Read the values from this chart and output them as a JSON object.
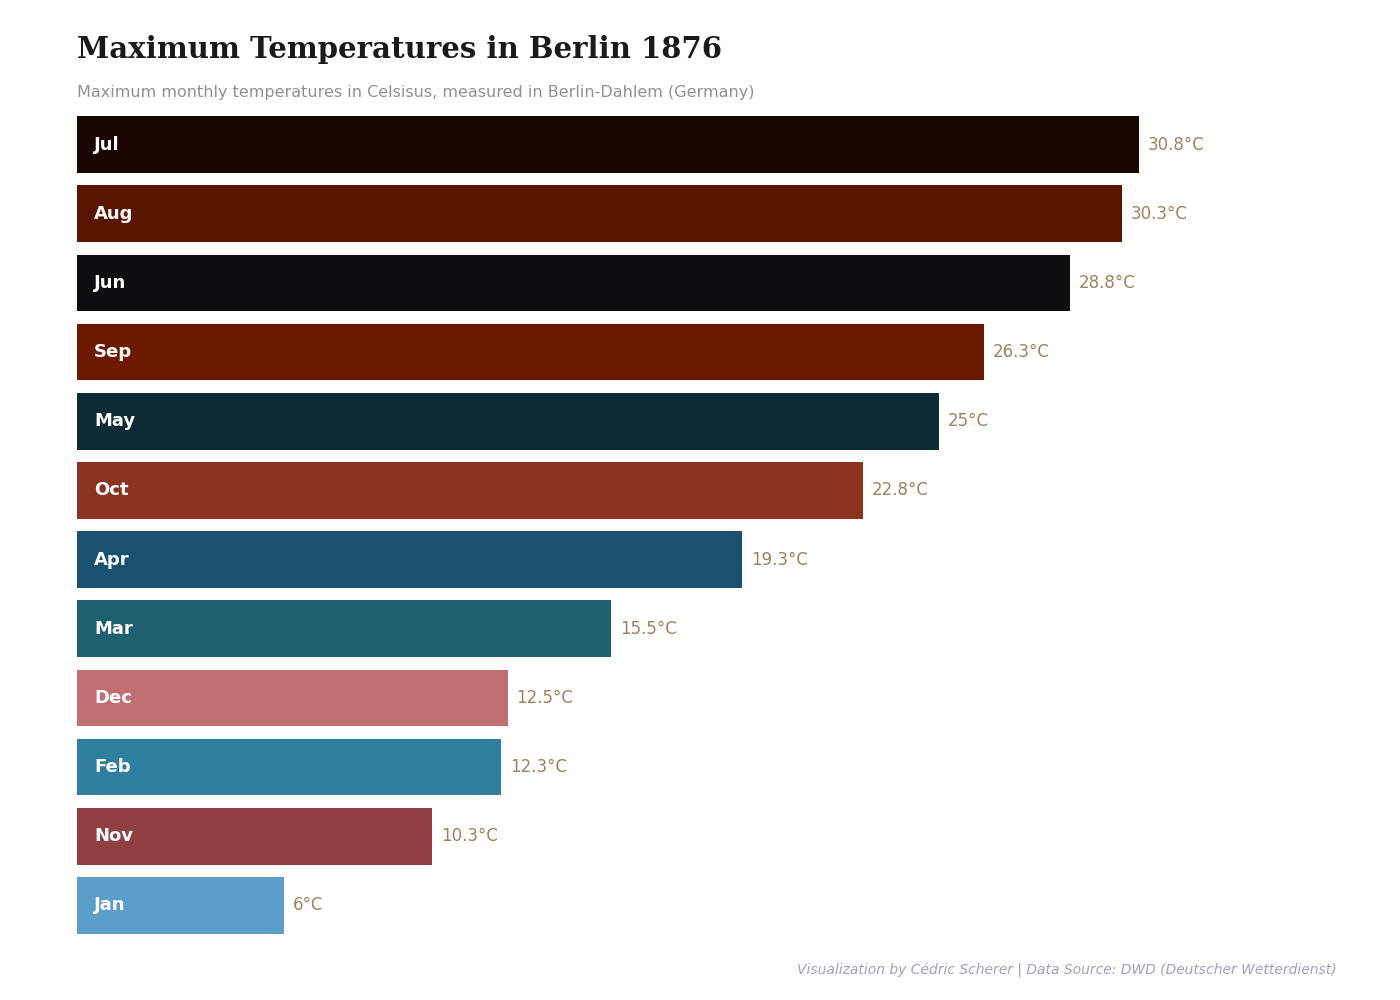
{
  "title": "Maximum Temperatures in Berlin 1876",
  "subtitle": "Maximum monthly temperatures in Celsisus, measured in Berlin-Dahlem (Germany)",
  "caption": "Visualization by Cédric Scherer | Data Source: DWD (Deutscher Wetterdienst)",
  "months": [
    "Jul",
    "Aug",
    "Jun",
    "Sep",
    "May",
    "Oct",
    "Apr",
    "Mar",
    "Dec",
    "Feb",
    "Nov",
    "Jan"
  ],
  "values": [
    30.8,
    30.3,
    28.8,
    26.3,
    25.0,
    22.8,
    19.3,
    15.5,
    12.5,
    12.3,
    10.3,
    6.0
  ],
  "labels": [
    "30.8°C",
    "30.3°C",
    "28.8°C",
    "26.3°C",
    "25°C",
    "22.8°C",
    "19.3°C",
    "15.5°C",
    "12.5°C",
    "12.3°C",
    "10.3°C",
    "6°C"
  ],
  "colors": [
    "#1a0500",
    "#5a1500",
    "#0d0d12",
    "#6b1a00",
    "#0d2b35",
    "#8b3320",
    "#1a5070",
    "#1e6070",
    "#c07070",
    "#2e7fa0",
    "#904040",
    "#5b9ec9"
  ],
  "background_color": "#ffffff",
  "bar_label_color_outside": "#a08060",
  "title_color": "#1a1a1a",
  "subtitle_color": "#909090",
  "caption_color": "#a0a0c0",
  "xlim_max": 33.5,
  "bar_height": 0.82,
  "label_outside_threshold": 30.0
}
